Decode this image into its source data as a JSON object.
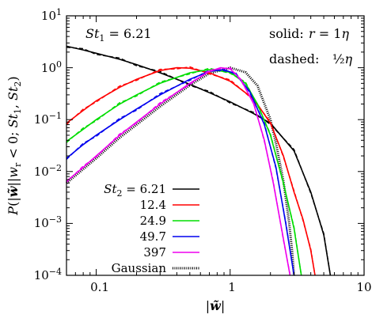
{
  "chart_data": {
    "type": "line",
    "xlabel": "|w̃|",
    "ylabel": "P(|w̃| | w_r < 0; St₁, St₂)",
    "xscale": "log",
    "yscale": "log",
    "xlim": [
      0.06,
      10
    ],
    "ylim": [
      0.0001,
      10
    ],
    "x_tick_labels": [
      "0.1",
      "1",
      "10"
    ],
    "y_tick_labels": [
      "10^-4",
      "10^-3",
      "10^-2",
      "10^-1",
      "10^0",
      "10^1"
    ],
    "annotations": {
      "st1": "St₁ = 6.21",
      "solid_label": "solid:",
      "solid_value": "r = 1η",
      "dashed_label": "dashed:",
      "dashed_value": "½η"
    },
    "legend": {
      "position": "bottom-left",
      "entries": [
        {
          "label": "St₂ = 6.21",
          "color": "#000000",
          "style": "solid"
        },
        {
          "label": "12.4",
          "color": "#ff0000",
          "style": "solid"
        },
        {
          "label": "24.9",
          "color": "#00dd00",
          "style": "solid"
        },
        {
          "label": "49.7",
          "color": "#0000ee",
          "style": "solid"
        },
        {
          "label": "397",
          "color": "#ee00ee",
          "style": "solid"
        },
        {
          "label": "Gaussian",
          "color": "#000000",
          "style": "dotted"
        }
      ]
    },
    "series": [
      {
        "name": "St₂ = 6.21",
        "color": "#000000",
        "x": [
          0.06,
          0.08,
          0.1,
          0.15,
          0.2,
          0.3,
          0.5,
          0.7,
          1.0,
          1.5,
          2.0,
          3.0,
          4.0,
          5.0,
          5.6
        ],
        "y": [
          2.6,
          2.2,
          1.9,
          1.45,
          1.15,
          0.8,
          0.48,
          0.33,
          0.22,
          0.13,
          0.085,
          0.025,
          0.004,
          0.0006,
          0.0001
        ]
      },
      {
        "name": "12.4",
        "color": "#ff0000",
        "x": [
          0.06,
          0.08,
          0.1,
          0.15,
          0.2,
          0.3,
          0.4,
          0.5,
          0.7,
          1.0,
          1.5,
          2.0,
          2.5,
          3.0,
          3.5,
          4.0,
          4.3
        ],
        "y": [
          0.085,
          0.15,
          0.23,
          0.42,
          0.6,
          0.88,
          1.0,
          0.98,
          0.8,
          0.55,
          0.25,
          0.085,
          0.02,
          0.004,
          0.0012,
          0.0003,
          0.0001
        ]
      },
      {
        "name": "24.9",
        "color": "#00dd00",
        "x": [
          0.06,
          0.08,
          0.1,
          0.15,
          0.2,
          0.3,
          0.5,
          0.7,
          1.0,
          1.3,
          1.6,
          2.0,
          2.5,
          3.0,
          3.4
        ],
        "y": [
          0.038,
          0.065,
          0.1,
          0.2,
          0.3,
          0.5,
          0.8,
          0.92,
          0.82,
          0.5,
          0.2,
          0.05,
          0.006,
          0.0008,
          0.0001
        ]
      },
      {
        "name": "49.7",
        "color": "#0000ee",
        "x": [
          0.06,
          0.08,
          0.1,
          0.15,
          0.2,
          0.3,
          0.5,
          0.7,
          0.9,
          1.1,
          1.4,
          1.8,
          2.2,
          2.6,
          3.0
        ],
        "y": [
          0.018,
          0.033,
          0.05,
          0.1,
          0.16,
          0.3,
          0.6,
          0.85,
          0.92,
          0.75,
          0.35,
          0.08,
          0.012,
          0.001,
          0.0001
        ]
      },
      {
        "name": "397",
        "color": "#ee00ee",
        "x": [
          0.06,
          0.08,
          0.1,
          0.15,
          0.2,
          0.3,
          0.5,
          0.7,
          0.85,
          1.0,
          1.2,
          1.5,
          1.8,
          2.1,
          2.5,
          2.8
        ],
        "y": [
          0.0065,
          0.012,
          0.02,
          0.05,
          0.09,
          0.2,
          0.5,
          0.85,
          1.0,
          0.95,
          0.6,
          0.2,
          0.04,
          0.006,
          0.0005,
          0.0001
        ]
      }
    ],
    "gaussian": {
      "name": "Gaussian",
      "color": "#000000",
      "x": [
        0.06,
        0.1,
        0.15,
        0.2,
        0.3,
        0.5,
        0.7,
        1.0,
        1.3,
        1.6,
        2.0,
        2.2,
        2.5,
        2.75,
        2.9,
        3.0
      ],
      "y": [
        0.006,
        0.018,
        0.045,
        0.08,
        0.18,
        0.46,
        0.78,
        1.0,
        0.82,
        0.45,
        0.1,
        0.035,
        0.0065,
        0.0011,
        0.0003,
        0.0001
      ]
    }
  }
}
